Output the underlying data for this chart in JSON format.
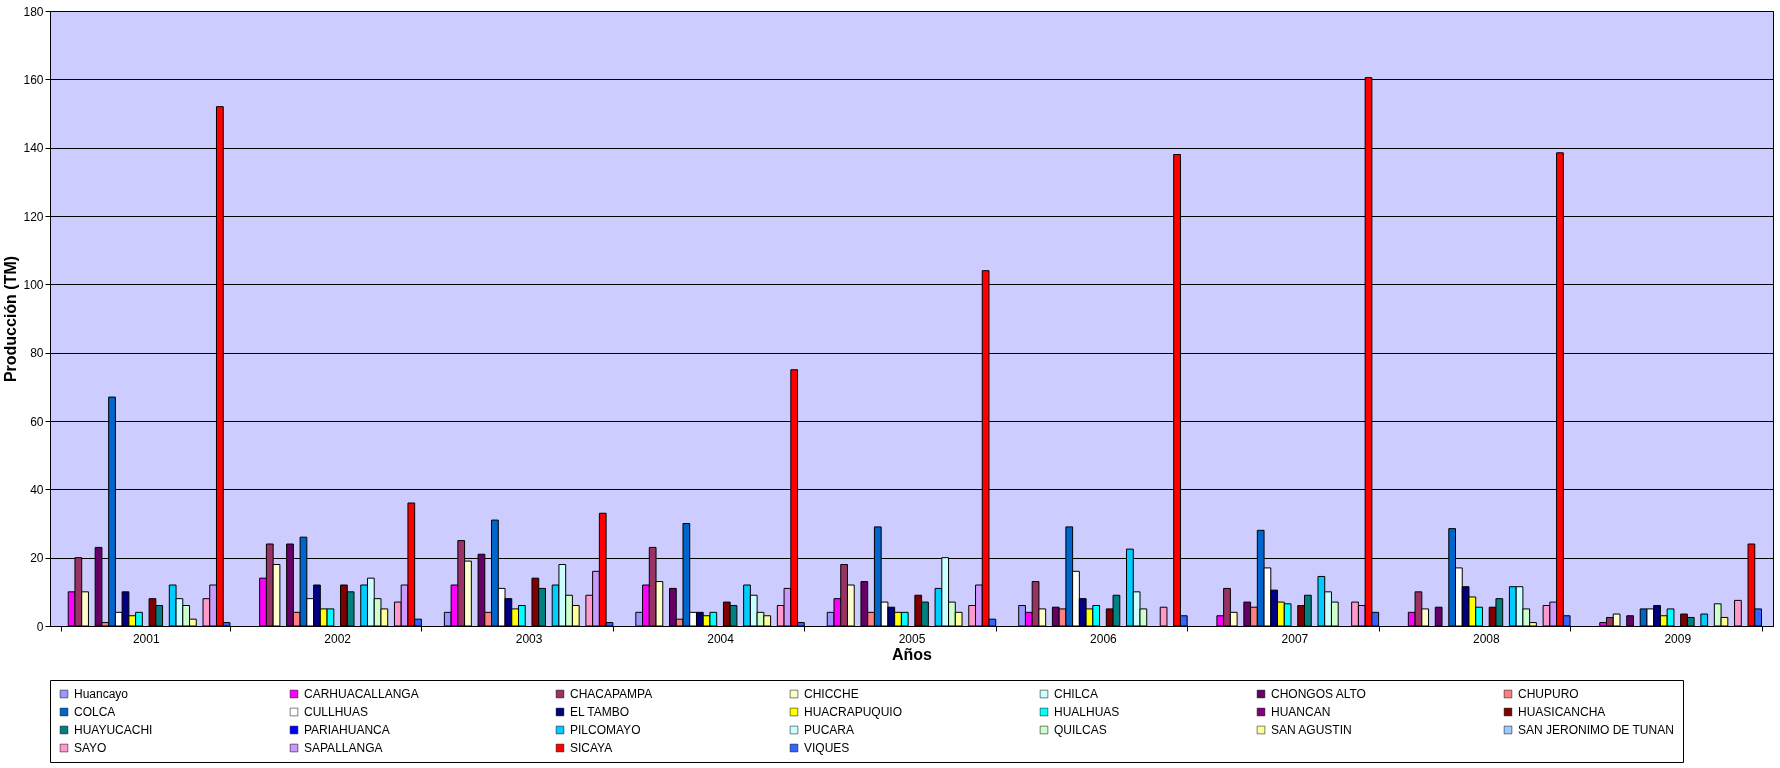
{
  "chart_data": {
    "type": "bar",
    "xlabel": "Años",
    "ylabel": "Producción (TM)",
    "categories": [
      "2001",
      "2002",
      "2003",
      "2004",
      "2005",
      "2006",
      "2007",
      "2008",
      "2009"
    ],
    "ylim": [
      0,
      180
    ],
    "yticks": [
      0,
      20,
      40,
      60,
      80,
      100,
      120,
      140,
      160,
      180
    ],
    "grid": "y",
    "legend": "bottom",
    "series": [
      {
        "name": "Huancayo",
        "color": "#9999ff",
        "values": [
          0,
          0,
          4,
          4,
          4,
          6,
          0,
          0,
          0
        ]
      },
      {
        "name": "CARHUACALLANGA",
        "color": "#ff00ff",
        "values": [
          10,
          14,
          12,
          12,
          8,
          4,
          3,
          4,
          1
        ]
      },
      {
        "name": "CHACAPAMPA",
        "color": "#993366",
        "values": [
          20,
          24,
          25,
          23,
          18,
          13,
          11,
          10,
          2.5
        ]
      },
      {
        "name": "CHICCHE",
        "color": "#ffffcc",
        "values": [
          10,
          18,
          19,
          13,
          12,
          5,
          4,
          5,
          3.5
        ]
      },
      {
        "name": "CHILCA",
        "color": "#ccffff",
        "values": [
          0,
          0,
          0,
          0,
          0,
          0,
          0,
          0,
          0
        ]
      },
      {
        "name": "CHONGOS ALTO",
        "color": "#660066",
        "values": [
          23,
          24,
          21,
          11,
          13,
          5.5,
          7,
          5.5,
          3
        ]
      },
      {
        "name": "CHUPURO",
        "color": "#ff8080",
        "values": [
          1,
          4,
          4,
          2,
          4,
          5,
          5.5,
          0,
          0
        ]
      },
      {
        "name": "COLCA",
        "color": "#0066cc",
        "values": [
          67,
          26,
          31,
          30,
          29,
          29,
          28,
          28.5,
          5
        ]
      },
      {
        "name": "CULLHUAS",
        "color": "#ffffff",
        "values": [
          4,
          8,
          11,
          4,
          7,
          16,
          17,
          17,
          5
        ]
      },
      {
        "name": "EL TAMBO",
        "color": "#000080",
        "values": [
          10,
          12,
          8,
          4,
          5.5,
          8,
          10.5,
          11.5,
          6
        ]
      },
      {
        "name": "HUACRAPUQUIO",
        "color": "#ffff00",
        "values": [
          3,
          5,
          5,
          3,
          4,
          5,
          7,
          8.5,
          3
        ]
      },
      {
        "name": "HUALHUAS",
        "color": "#00ffff",
        "values": [
          4,
          5,
          6,
          4,
          4,
          6,
          6.5,
          5.5,
          5
        ]
      },
      {
        "name": "HUANCAN",
        "color": "#800080",
        "values": [
          0,
          0,
          0,
          0,
          0,
          0,
          0,
          0,
          0
        ]
      },
      {
        "name": "HUASICANCHA",
        "color": "#800000",
        "values": [
          8,
          12,
          14,
          7,
          9,
          5,
          6,
          5.5,
          3.5
        ]
      },
      {
        "name": "HUAYUCACHI",
        "color": "#008080",
        "values": [
          6,
          10,
          11,
          6,
          7,
          9,
          9,
          8,
          2.5
        ]
      },
      {
        "name": "PARIAHUANCA",
        "color": "#0000ff",
        "values": [
          0,
          0,
          0,
          0,
          0,
          0,
          0,
          0,
          0
        ]
      },
      {
        "name": "PILCOMAYO",
        "color": "#00ccff",
        "values": [
          12,
          12,
          12,
          12,
          11,
          22.5,
          14.5,
          11.5,
          3.5
        ]
      },
      {
        "name": "PUCARA",
        "color": "#ccffff",
        "values": [
          8,
          14,
          18,
          9,
          20,
          10,
          10,
          11.5,
          0
        ]
      },
      {
        "name": "QUILCAS",
        "color": "#ccffcc",
        "values": [
          6,
          8,
          9,
          4,
          7,
          5,
          7,
          5,
          6.5
        ]
      },
      {
        "name": "SAN AGUSTIN",
        "color": "#ffff99",
        "values": [
          2,
          5,
          6,
          3,
          4,
          0,
          0,
          1,
          2.5
        ]
      },
      {
        "name": "SAN JERONIMO DE TUNAN",
        "color": "#99ccff",
        "values": [
          0,
          0,
          0,
          0,
          0,
          0,
          0,
          0,
          0
        ]
      },
      {
        "name": "SAYO",
        "color": "#ff99cc",
        "values": [
          8,
          7,
          9,
          6,
          6,
          5.5,
          7,
          6,
          7.5
        ]
      },
      {
        "name": "SAPALLANGA",
        "color": "#cc99ff",
        "values": [
          12,
          12,
          16,
          11,
          12,
          0,
          6,
          7,
          0
        ]
      },
      {
        "name": "SICAYA",
        "color": "#ff0000",
        "values": [
          152,
          36,
          33,
          75,
          104,
          138,
          160.5,
          138.5,
          24
        ]
      },
      {
        "name": "VIQUES",
        "color": "#3366ff",
        "values": [
          1,
          2,
          1,
          1,
          2,
          3,
          4,
          3,
          5
        ]
      }
    ]
  }
}
